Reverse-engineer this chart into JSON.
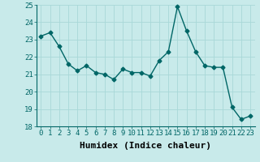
{
  "x": [
    0,
    1,
    2,
    3,
    4,
    5,
    6,
    7,
    8,
    9,
    10,
    11,
    12,
    13,
    14,
    15,
    16,
    17,
    18,
    19,
    20,
    21,
    22,
    23
  ],
  "y": [
    23.2,
    23.4,
    22.6,
    21.6,
    21.2,
    21.5,
    21.1,
    21.0,
    20.7,
    21.3,
    21.1,
    21.1,
    20.9,
    21.8,
    22.3,
    24.9,
    23.5,
    22.3,
    21.5,
    21.4,
    21.4,
    19.1,
    18.4,
    18.6
  ],
  "line_color": "#006666",
  "marker": "D",
  "marker_size": 2.5,
  "line_width": 1.0,
  "xlabel": "Humidex (Indice chaleur)",
  "xlabel_fontsize": 8,
  "ylim": [
    18,
    25
  ],
  "yticks": [
    18,
    19,
    20,
    21,
    22,
    23,
    24,
    25
  ],
  "xticks": [
    0,
    1,
    2,
    3,
    4,
    5,
    6,
    7,
    8,
    9,
    10,
    11,
    12,
    13,
    14,
    15,
    16,
    17,
    18,
    19,
    20,
    21,
    22,
    23
  ],
  "bg_color": "#c8eaea",
  "grid_color": "#a8d8d8",
  "tick_fontsize": 6.5,
  "spine_color": "#006666"
}
